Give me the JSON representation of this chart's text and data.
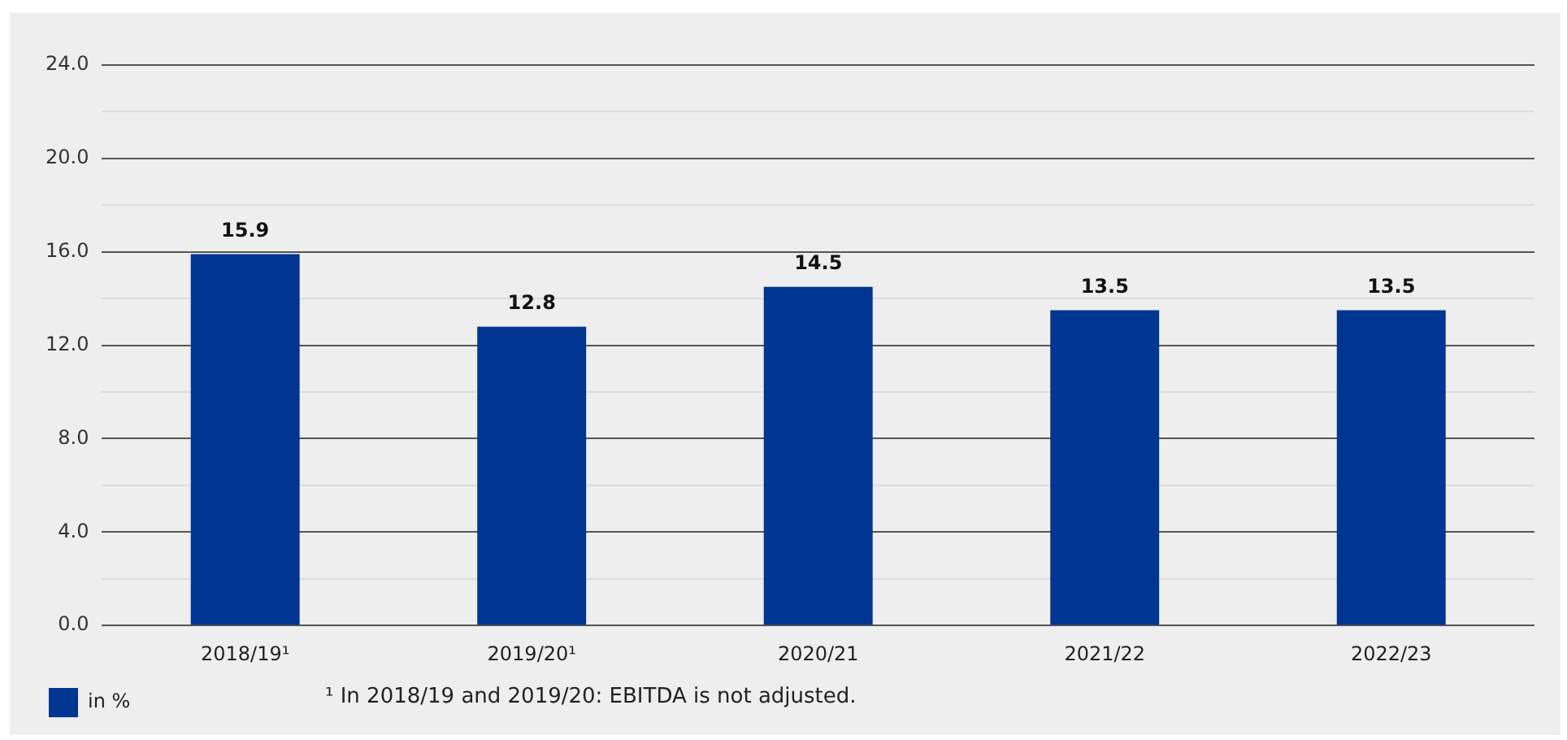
{
  "chart_data": {
    "type": "bar",
    "categories": [
      "2018/19¹",
      "2019/20¹",
      "2020/21",
      "2021/22",
      "2022/23"
    ],
    "series": [
      {
        "name": "in %",
        "color": "#003591",
        "values": [
          15.9,
          12.8,
          14.5,
          13.5,
          13.5
        ]
      }
    ],
    "ylim": [
      0,
      24
    ],
    "yticks": [
      {
        "value": 0,
        "label": "0.0"
      },
      {
        "value": 2,
        "label": null
      },
      {
        "value": 4,
        "label": "4.0"
      },
      {
        "value": 6,
        "label": null
      },
      {
        "value": 8,
        "label": "8.0"
      },
      {
        "value": 10,
        "label": null
      },
      {
        "value": 12,
        "label": "12.0"
      },
      {
        "value": 14,
        "label": null
      },
      {
        "value": 16,
        "label": "16.0"
      },
      {
        "value": 18,
        "label": null
      },
      {
        "value": 20,
        "label": "20.0"
      },
      {
        "value": 22,
        "label": null
      },
      {
        "value": 24,
        "label": "24.0"
      }
    ],
    "grid": "y",
    "data_labels": true,
    "legend": "bottom left",
    "annotations": [
      "¹ In 2018/19 and 2019/20: EBITDA is not adjusted."
    ]
  }
}
